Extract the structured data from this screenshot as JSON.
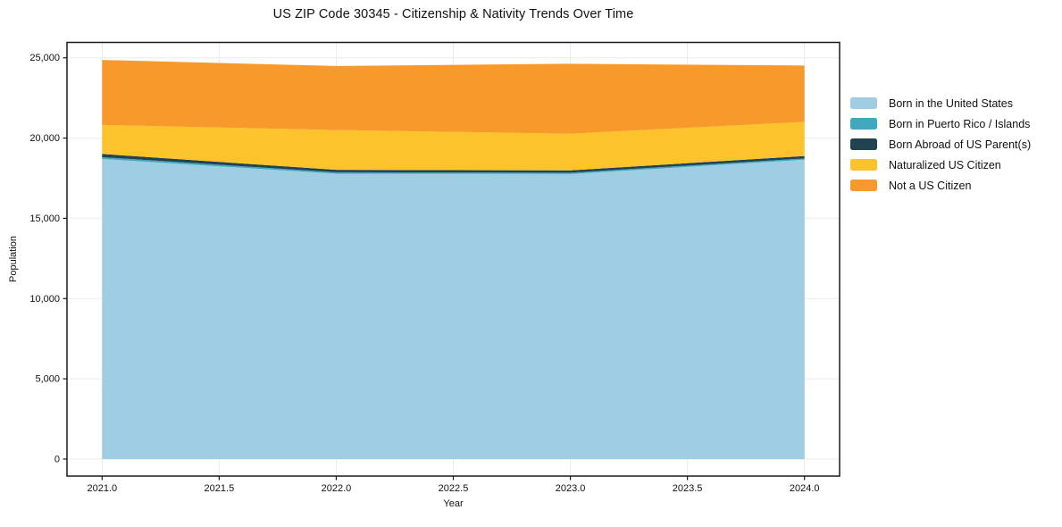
{
  "chart_data": {
    "type": "area",
    "stacked": true,
    "title": "US ZIP Code 30345 - Citizenship & Nativity Trends Over Time",
    "xlabel": "Year",
    "ylabel": "Population",
    "x": [
      2021,
      2022,
      2023,
      2024
    ],
    "series": [
      {
        "name": "Born in the United States",
        "color": "#9FCEE4",
        "values": [
          18700,
          17780,
          17760,
          18650
        ]
      },
      {
        "name": "Born in Puerto Rico / Islands",
        "color": "#41A8BF",
        "values": [
          110,
          90,
          80,
          80
        ]
      },
      {
        "name": "Born Abroad of US Parent(s)",
        "color": "#20434F",
        "values": [
          200,
          150,
          150,
          150
        ]
      },
      {
        "name": "Naturalized US Citizen",
        "color": "#FCC32D",
        "values": [
          1810,
          2480,
          2280,
          2130
        ]
      },
      {
        "name": "Not a US Citizen",
        "color": "#F8992C",
        "values": [
          4050,
          3990,
          4360,
          3510
        ]
      }
    ],
    "xticks": [
      2021.0,
      2021.5,
      2022.0,
      2022.5,
      2023.0,
      2023.5,
      2024.0
    ],
    "xtick_labels": [
      "2021.0",
      "2021.5",
      "2022.0",
      "2022.5",
      "2023.0",
      "2023.5",
      "2024.0"
    ],
    "yticks": [
      0,
      5000,
      10000,
      15000,
      20000,
      25000
    ],
    "ytick_labels": [
      "0",
      "5,000",
      "10,000",
      "15,000",
      "20,000",
      "25,000"
    ],
    "xlim": [
      2020.85,
      2024.15
    ],
    "ylim": [
      -1060,
      25960
    ],
    "grid": true,
    "legend_position": "right",
    "grid_color": "#ebebeb",
    "spine_color": "#1a1a1a",
    "background_color": "#ffffff"
  }
}
